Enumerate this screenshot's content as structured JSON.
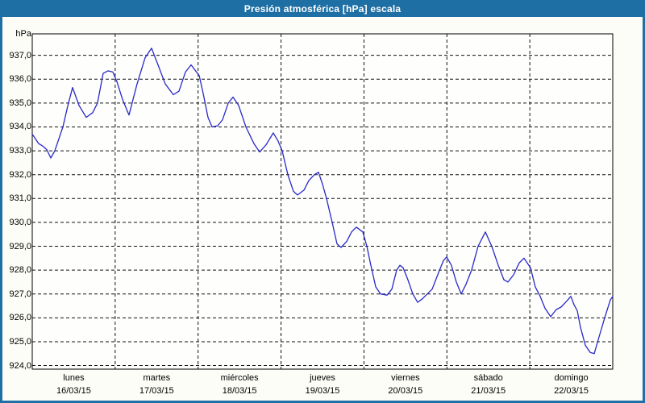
{
  "window": {
    "title": "Presión atmosférica [hPa] escala"
  },
  "colors": {
    "titlebar": "#1E6FA4",
    "frame": "#1E6FA4",
    "background": "#FDFDF8",
    "plot_background": "#FEFEFC",
    "grid": "#111111",
    "line": "#2929C8",
    "text": "#000000",
    "title_text": "#FFFFFF"
  },
  "chart_data": {
    "type": "line",
    "title": "Presión atmosférica [hPa] escala",
    "ylabel_unit": "hPa",
    "ylim": [
      923.85,
      937.9
    ],
    "xlim_days": [
      0,
      7
    ],
    "grid": "dashed",
    "legend": "none",
    "y_ticks": [
      924,
      925,
      926,
      927,
      928,
      929,
      930,
      931,
      932,
      933,
      934,
      935,
      936,
      937
    ],
    "y_tick_labels": [
      "924,0",
      "925,0",
      "926,0",
      "927,0",
      "928,0",
      "929,0",
      "930,0",
      "931,0",
      "932,0",
      "933,0",
      "934,0",
      "935,0",
      "936,0",
      "937,0"
    ],
    "days": [
      {
        "name": "lunes",
        "date": "16/03/15"
      },
      {
        "name": "martes",
        "date": "17/03/15"
      },
      {
        "name": "miércoles",
        "date": "18/03/15"
      },
      {
        "name": "jueves",
        "date": "19/03/15"
      },
      {
        "name": "viernes",
        "date": "20/03/15"
      },
      {
        "name": "sábado",
        "date": "21/03/15"
      },
      {
        "name": "domingo",
        "date": "22/03/15"
      }
    ],
    "series": [
      {
        "name": "Presión atmosférica [hPa]",
        "points_t_days_vs_hpa": [
          [
            0.0,
            933.7
          ],
          [
            0.078,
            933.3
          ],
          [
            0.126,
            933.2
          ],
          [
            0.175,
            933.05
          ],
          [
            0.224,
            932.7
          ],
          [
            0.272,
            933.0
          ],
          [
            0.369,
            934.0
          ],
          [
            0.43,
            934.9
          ],
          [
            0.486,
            935.65
          ],
          [
            0.564,
            934.9
          ],
          [
            0.651,
            934.4
          ],
          [
            0.729,
            934.6
          ],
          [
            0.787,
            935.0
          ],
          [
            0.856,
            936.25
          ],
          [
            0.914,
            936.35
          ],
          [
            0.972,
            936.3
          ],
          [
            1.021,
            935.9
          ],
          [
            1.089,
            935.15
          ],
          [
            1.167,
            934.5
          ],
          [
            1.264,
            935.8
          ],
          [
            1.361,
            936.9
          ],
          [
            1.439,
            937.3
          ],
          [
            1.517,
            936.6
          ],
          [
            1.604,
            935.8
          ],
          [
            1.701,
            935.35
          ],
          [
            1.769,
            935.5
          ],
          [
            1.847,
            936.3
          ],
          [
            1.915,
            936.6
          ],
          [
            2.013,
            936.15
          ],
          [
            2.061,
            935.4
          ],
          [
            2.119,
            934.4
          ],
          [
            2.168,
            934.0
          ],
          [
            2.236,
            934.05
          ],
          [
            2.294,
            934.3
          ],
          [
            2.363,
            935.0
          ],
          [
            2.421,
            935.25
          ],
          [
            2.489,
            934.9
          ],
          [
            2.576,
            934.0
          ],
          [
            2.674,
            933.3
          ],
          [
            2.742,
            932.95
          ],
          [
            2.819,
            933.25
          ],
          [
            2.907,
            933.75
          ],
          [
            2.965,
            933.4
          ],
          [
            3.014,
            933.0
          ],
          [
            3.082,
            932.0
          ],
          [
            3.15,
            931.3
          ],
          [
            3.199,
            931.15
          ],
          [
            3.276,
            931.35
          ],
          [
            3.335,
            931.75
          ],
          [
            3.403,
            932.0
          ],
          [
            3.451,
            932.1
          ],
          [
            3.5,
            931.6
          ],
          [
            3.549,
            931.0
          ],
          [
            3.617,
            930.0
          ],
          [
            3.675,
            929.1
          ],
          [
            3.724,
            928.95
          ],
          [
            3.792,
            929.2
          ],
          [
            3.85,
            929.6
          ],
          [
            3.908,
            929.8
          ],
          [
            3.986,
            929.6
          ],
          [
            4.035,
            929.0
          ],
          [
            4.083,
            928.2
          ],
          [
            4.142,
            927.3
          ],
          [
            4.2,
            927.0
          ],
          [
            4.278,
            926.95
          ],
          [
            4.336,
            927.2
          ],
          [
            4.394,
            928.0
          ],
          [
            4.433,
            928.2
          ],
          [
            4.472,
            928.1
          ],
          [
            4.53,
            927.6
          ],
          [
            4.589,
            927.0
          ],
          [
            4.647,
            926.65
          ],
          [
            4.705,
            926.8
          ],
          [
            4.764,
            927.0
          ],
          [
            4.822,
            927.2
          ],
          [
            4.9,
            927.9
          ],
          [
            4.958,
            928.4
          ],
          [
            4.997,
            928.55
          ],
          [
            5.055,
            928.2
          ],
          [
            5.114,
            927.5
          ],
          [
            5.172,
            927.0
          ],
          [
            5.23,
            927.4
          ],
          [
            5.298,
            928.0
          ],
          [
            5.376,
            929.0
          ],
          [
            5.464,
            929.6
          ],
          [
            5.541,
            929.0
          ],
          [
            5.619,
            928.2
          ],
          [
            5.687,
            927.6
          ],
          [
            5.736,
            927.5
          ],
          [
            5.804,
            927.8
          ],
          [
            5.872,
            928.3
          ],
          [
            5.93,
            928.5
          ],
          [
            6.008,
            928.1
          ],
          [
            6.066,
            927.3
          ],
          [
            6.125,
            926.9
          ],
          [
            6.183,
            926.4
          ],
          [
            6.251,
            926.05
          ],
          [
            6.319,
            926.35
          ],
          [
            6.377,
            926.45
          ],
          [
            6.445,
            926.7
          ],
          [
            6.494,
            926.9
          ],
          [
            6.533,
            926.55
          ],
          [
            6.572,
            926.3
          ],
          [
            6.611,
            925.6
          ],
          [
            6.669,
            924.85
          ],
          [
            6.728,
            924.55
          ],
          [
            6.776,
            924.5
          ],
          [
            6.835,
            925.2
          ],
          [
            6.903,
            926.0
          ],
          [
            6.971,
            926.75
          ],
          [
            7.0,
            926.9
          ]
        ]
      }
    ]
  }
}
